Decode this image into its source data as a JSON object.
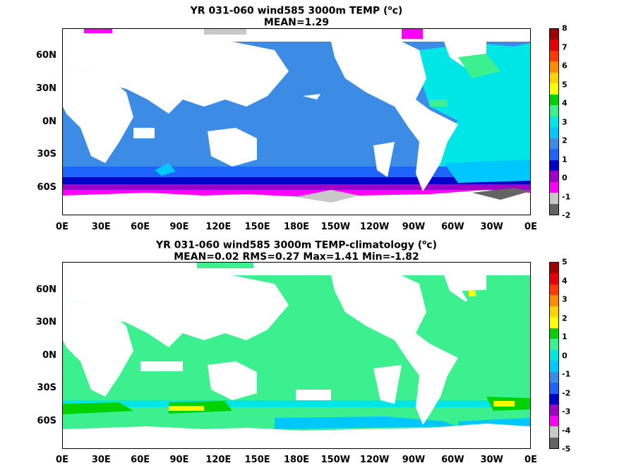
{
  "colors": {
    "ocean_main": "#3c8ce6",
    "ocean_warm": "#00e6e6",
    "ocean_green": "#3cf090",
    "ocean_lightgreen": "#00ffa0",
    "ocean_cyan": "#00c8ff",
    "deep_blue": "#0000c8",
    "mid_blue": "#1e64ff",
    "magenta": "#ff00ff",
    "purple": "#a000c8",
    "gray": "#c8c8c8",
    "dark_gray": "#646464",
    "yellow": "#ffff00",
    "green": "#00d200",
    "land": "#ffffff"
  },
  "chart_data": [
    {
      "type": "heatmap",
      "title_line1": "YR 031-060 wind585 3000m TEMP (",
      "title_sup": "o",
      "title_line1_end": "c)",
      "title_line2": "MEAN=1.29",
      "x_ticks": [
        "0E",
        "30E",
        "60E",
        "90E",
        "120E",
        "150E",
        "180E",
        "150W",
        "120W",
        "90W",
        "60W",
        "30W",
        "0E"
      ],
      "y_ticks": [
        "60N",
        "30N",
        "0N",
        "30S",
        "60S"
      ],
      "colorbar": {
        "labels": [
          "8",
          "7",
          "6",
          "5",
          "4",
          "3",
          "2",
          "1",
          "0",
          "-1",
          "-2"
        ],
        "colors": [
          "#a00000",
          "#e60000",
          "#ff3c00",
          "#ff8c00",
          "#ffd200",
          "#ffff00",
          "#00d200",
          "#3cf090",
          "#00e6e6",
          "#00c8ff",
          "#3c8ce6",
          "#1e64ff",
          "#0000c8",
          "#a000c8",
          "#ff00ff",
          "#c8c8c8",
          "#646464"
        ]
      }
    },
    {
      "type": "heatmap",
      "title_line1": "YR 031-060 wind585 3000m TEMP-climatology (",
      "title_sup": "o",
      "title_line1_end": "c)",
      "title_line2": "MEAN=0.02   RMS=0.27   Max=1.41   Min=-1.82",
      "x_ticks": [
        "0E",
        "30E",
        "60E",
        "90E",
        "120E",
        "150E",
        "180E",
        "150W",
        "120W",
        "90W",
        "60W",
        "30W",
        "0E"
      ],
      "y_ticks": [
        "60N",
        "30N",
        "0N",
        "30S",
        "60S"
      ],
      "colorbar": {
        "labels": [
          "5",
          "4",
          "3",
          "2",
          "1",
          "0",
          "-1",
          "-2",
          "-3",
          "-4",
          "-5"
        ],
        "colors": [
          "#a00000",
          "#e60000",
          "#ff3c00",
          "#ff8c00",
          "#ffd200",
          "#ffff00",
          "#00d200",
          "#3cf090",
          "#00e6e6",
          "#00c8ff",
          "#3c8ce6",
          "#1e64ff",
          "#0000c8",
          "#a000c8",
          "#ff00ff",
          "#c8c8c8",
          "#646464"
        ]
      }
    }
  ]
}
